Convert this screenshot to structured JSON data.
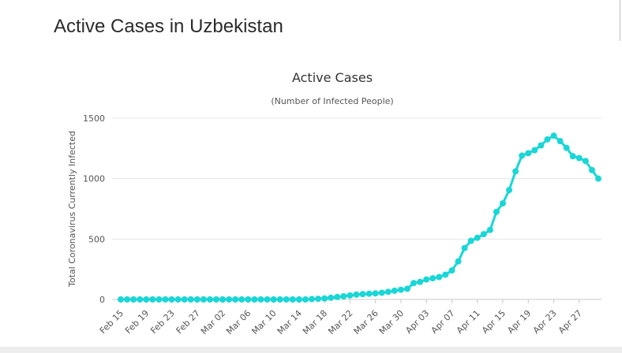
{
  "page": {
    "heading": "Active Cases in Uzbekistan"
  },
  "chart_data": {
    "type": "line",
    "title": "Active Cases",
    "subtitle": "(Number of Infected People)",
    "xlabel": "",
    "ylabel": "Total Coronavirus Currently Infected",
    "ylim": [
      0,
      1500
    ],
    "yticks": [
      0,
      500,
      1000,
      1500
    ],
    "grid": true,
    "color": "#1ad6d6",
    "x_tick_labels": [
      "Feb 15",
      "Feb 19",
      "Feb 23",
      "Feb 27",
      "Mar 02",
      "Mar 06",
      "Mar 10",
      "Mar 14",
      "Mar 18",
      "Mar 22",
      "Mar 26",
      "Mar 30",
      "Apr 03",
      "Apr 07",
      "Apr 11",
      "Apr 15",
      "Apr 19",
      "Apr 23",
      "Apr 27"
    ],
    "start_date": "Feb 15",
    "end_date": "Apr 28",
    "series": [
      {
        "name": "Currently Infected",
        "values": [
          0,
          0,
          0,
          0,
          0,
          0,
          0,
          0,
          0,
          0,
          0,
          0,
          0,
          0,
          0,
          0,
          0,
          0,
          0,
          0,
          0,
          0,
          0,
          0,
          0,
          0,
          0,
          0,
          0,
          0,
          3,
          5,
          8,
          14,
          20,
          26,
          33,
          40,
          44,
          47,
          50,
          55,
          63,
          72,
          80,
          88,
          135,
          145,
          165,
          175,
          185,
          205,
          240,
          315,
          425,
          485,
          510,
          540,
          575,
          725,
          795,
          905,
          1060,
          1190,
          1210,
          1235,
          1275,
          1325,
          1355,
          1310,
          1255,
          1185,
          1170,
          1145,
          1070,
          1000
        ]
      }
    ]
  }
}
